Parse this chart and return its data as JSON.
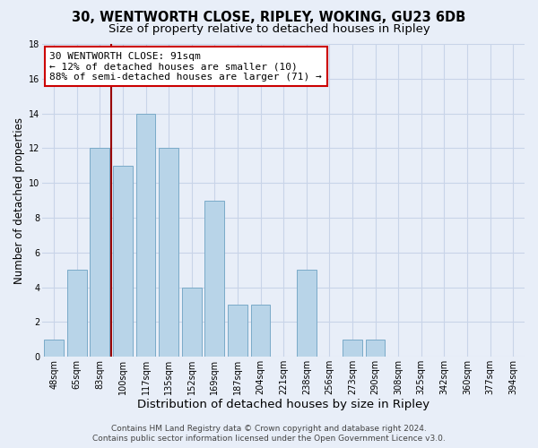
{
  "title": "30, WENTWORTH CLOSE, RIPLEY, WOKING, GU23 6DB",
  "subtitle": "Size of property relative to detached houses in Ripley",
  "xlabel": "Distribution of detached houses by size in Ripley",
  "ylabel": "Number of detached properties",
  "bar_labels": [
    "48sqm",
    "65sqm",
    "83sqm",
    "100sqm",
    "117sqm",
    "135sqm",
    "152sqm",
    "169sqm",
    "187sqm",
    "204sqm",
    "221sqm",
    "238sqm",
    "256sqm",
    "273sqm",
    "290sqm",
    "308sqm",
    "325sqm",
    "342sqm",
    "360sqm",
    "377sqm",
    "394sqm"
  ],
  "bar_values": [
    1,
    5,
    12,
    11,
    14,
    12,
    4,
    9,
    3,
    3,
    0,
    5,
    0,
    1,
    1,
    0,
    0,
    0,
    0,
    0,
    0
  ],
  "bar_color": "#b8d4e8",
  "bar_edge_color": "#7aaac8",
  "vline_color": "#990000",
  "ylim": [
    0,
    18
  ],
  "yticks": [
    0,
    2,
    4,
    6,
    8,
    10,
    12,
    14,
    16,
    18
  ],
  "annotation_lines": [
    "30 WENTWORTH CLOSE: 91sqm",
    "← 12% of detached houses are smaller (10)",
    "88% of semi-detached houses are larger (71) →"
  ],
  "footer_line1": "Contains HM Land Registry data © Crown copyright and database right 2024.",
  "footer_line2": "Contains public sector information licensed under the Open Government Licence v3.0.",
  "background_color": "#e8eef8",
  "grid_color": "#c8d4e8",
  "title_fontsize": 10.5,
  "subtitle_fontsize": 9.5,
  "xlabel_fontsize": 9.5,
  "ylabel_fontsize": 8.5,
  "tick_fontsize": 7,
  "annotation_fontsize": 8,
  "footer_fontsize": 6.5
}
